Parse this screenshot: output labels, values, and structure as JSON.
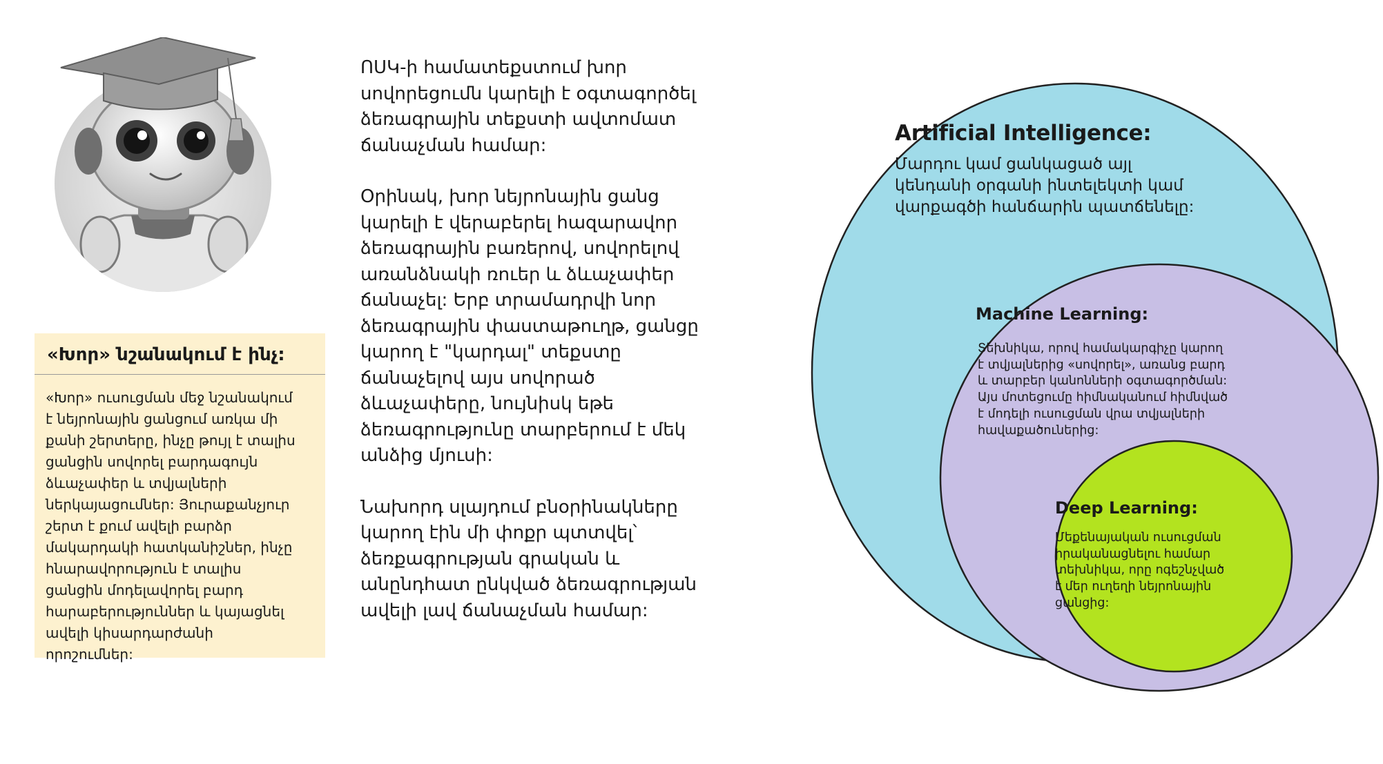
{
  "note": {
    "title": "«Խոր» նշանակում է ինչ:",
    "body": "«Խոր» ուսուցման մեջ նշանակում\nէ նեյրոնային ցանցում առկա մի\nքանի շերտերը, ինչը թույլ է տալիս\nցանցին սովորել բարդագույն\nձևաչափեր և տվյալների\nներկայացումներ: Յուրաքանչյուր\nշերտ է քում ավելի բարձր\nմակարդակի հատկանիշներ, ինչը\nհնարավորություն է տալիս\nցանցին մոդելավորել բարդ\nհարաբերություններ և կայացնել\nավելի կիսարդարժանի\nորոշումներ:"
  },
  "main_text": {
    "paragraph_1": "ՈՍԿ-ի համատեքստում խոր\nսովորեցումն կարելի է օգտագործել\nձեռագրային տեքստի ավտոմատ\nճանաչման համար:",
    "paragraph_2": "Օրինակ, խոր նեյրոնային ցանց\nկարելի է վերաբերել հազարավոր\nձեռագրային բառերով, սովորելով\nառանձնակի ռուեր և ձևաչափեր\nճանաչել: Երբ տրամադրվի նոր\nձեռագրային փաստաթուղթ, ցանցը\nկարող է \"կարդալ\" տեքստը\nճանաչելով այս սովորած\nձևաչափերը, նույնիսկ եթե\nձեռագրությունը տարբերում է մեկ\nանձից մյուսի:",
    "paragraph_3": "Նախորդ սլայդում բնօրինակները\nկարող էին մի փոքր պտտվել՝\nձեռքագրության գրական և\nանընդհատ ընկված ձեռագրության\nավելի լավ ճանաչման համար:"
  },
  "venn": {
    "ai": {
      "title": "Artificial Intelligence:",
      "description": "Մարդու կամ ցանկացած այլ\nկենդանի օրգանի ինտելեկտի կամ\nվարքագծի հանճարին պատճենելը:",
      "color": "#a0dbe9"
    },
    "ml": {
      "title": "Machine Learning:",
      "description": "Տեխնիկա, որով համակարգիչը կարող\nէ տվյալներից «սովորել», առանց բարդ\nև տարբեր կանոնների օգտագործման:\nԱյս մոտեցումը հիմնականում հիմնված\nէ մոդելի ուսուցման վրա տվյալների\nհավաքածուներից:",
      "color": "#c8bfe5"
    },
    "dl": {
      "title": "Deep Learning:",
      "description": "Մեքենայական ուսուցման\nիրականացնելու համար\nտեխնիկա, որը ոգեշնչված\nէ մեր ուղեղի նեյրոնային\nցանցից:",
      "color": "#b3e31f"
    }
  },
  "avatar": {
    "icon": "robot-graduate-icon"
  }
}
